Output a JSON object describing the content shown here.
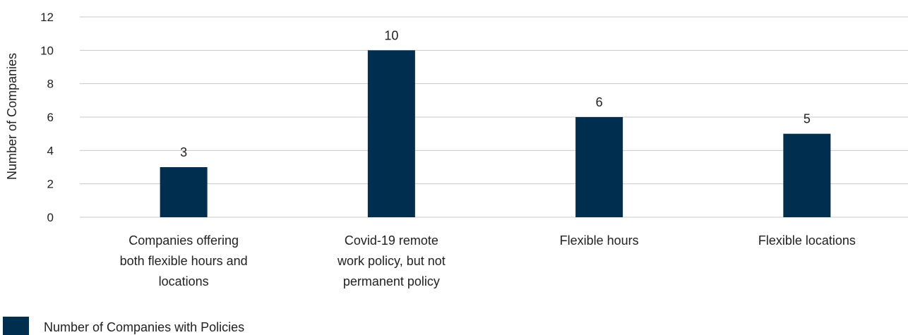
{
  "chart_data": {
    "type": "bar",
    "categories": [
      [
        "Companies offering",
        "both flexible hours and",
        "locations"
      ],
      [
        "Covid-19 remote",
        "work policy, but not",
        "permanent policy"
      ],
      [
        "Flexible hours"
      ],
      [
        "Flexible locations"
      ]
    ],
    "series": [
      {
        "name": "Number of Companies with Policies",
        "values": [
          3,
          10,
          6,
          5
        ],
        "color": "#002e4f"
      }
    ],
    "data_labels": [
      "3",
      "10",
      "6",
      "5"
    ],
    "xlabel": "",
    "ylabel": "Number of Companies",
    "ylim": [
      0,
      12
    ],
    "yticks": [
      0,
      2,
      4,
      6,
      8,
      10,
      12
    ],
    "grid": true,
    "legend": "bottom-left",
    "gridline_color": "#c8c8c8"
  }
}
